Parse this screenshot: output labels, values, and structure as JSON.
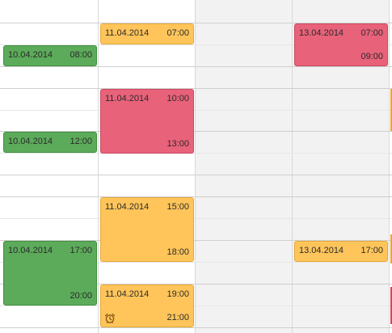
{
  "events": [
    {
      "date": "11.04.2014",
      "start": "07:00",
      "end": ""
    },
    {
      "date": "10.04.2014",
      "start": "08:00",
      "end": ""
    },
    {
      "date": "13.04.2014",
      "start": "07:00",
      "end": "09:00"
    },
    {
      "date": "11.04.2014",
      "start": "10:00",
      "end": "13:00"
    },
    {
      "date": "10.04.2014",
      "start": "12:00",
      "end": ""
    },
    {
      "date": "11.04.2014",
      "start": "15:00",
      "end": "18:00"
    },
    {
      "date": "10.04.2014",
      "start": "17:00",
      "end": "20:00"
    },
    {
      "date": "13.04.2014",
      "start": "17:00",
      "end": ""
    },
    {
      "date": "11.04.2014",
      "start": "19:00",
      "end": "21:00",
      "icon": "alarm-clock-icon"
    }
  ],
  "colors": {
    "green": "#5cab5a",
    "orange": "#ffc55a",
    "red": "#e8627a",
    "weekend_bg": "#f2f2f2"
  }
}
